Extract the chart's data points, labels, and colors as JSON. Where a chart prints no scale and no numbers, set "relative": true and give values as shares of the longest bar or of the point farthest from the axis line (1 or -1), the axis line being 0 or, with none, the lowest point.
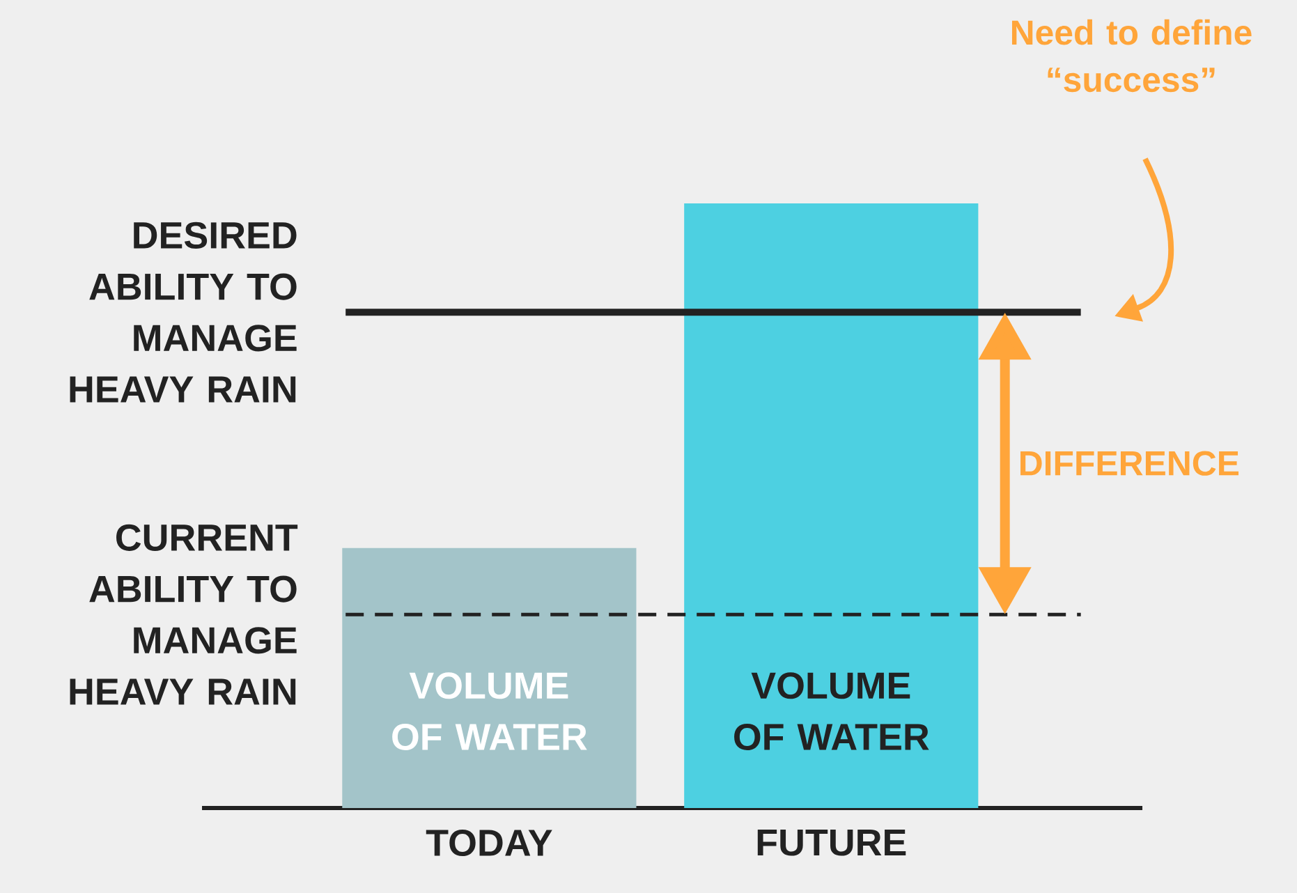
{
  "chart_data": {
    "type": "bar",
    "relative": true,
    "categories": [
      "TODAY",
      "FUTURE"
    ],
    "values": [
      0.43,
      1
    ],
    "colors": [
      "#a3c4c9",
      "#4dd0e1"
    ],
    "ref_lines": [
      {
        "axis": "y",
        "value": 0.82,
        "label": "DESIRED ABILITY TO MANAGE HEAVY RAIN",
        "color": "#222222",
        "line_style": "solid"
      },
      {
        "axis": "y",
        "value": 0.32,
        "label": "CURRENT ABILITY TO MANAGE HEAVY RAIN",
        "color": "#222222",
        "line_style": "dashed"
      }
    ],
    "annotations": [
      "VOLUME OF WATER",
      "VOLUME OF WATER",
      "DIFFERENCE",
      "Need to define “success”"
    ]
  }
}
